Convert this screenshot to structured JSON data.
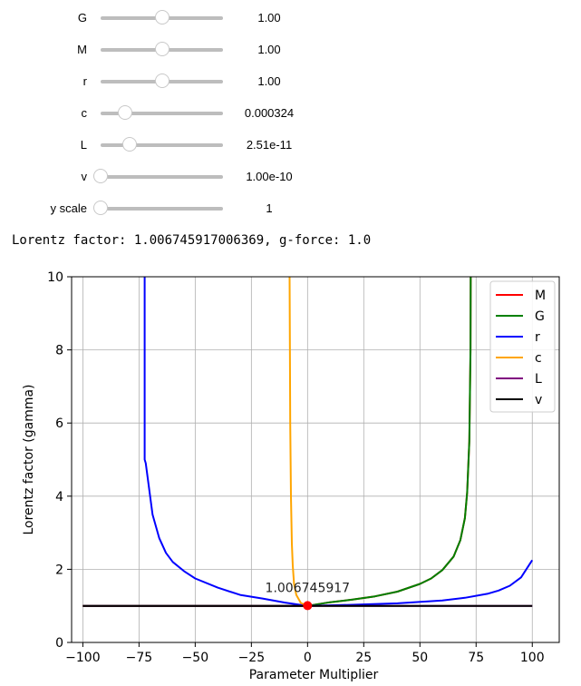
{
  "sliders": [
    {
      "label": "G",
      "readout": "1.00",
      "fraction": 0.5
    },
    {
      "label": "M",
      "readout": "1.00",
      "fraction": 0.5
    },
    {
      "label": "r",
      "readout": "1.00",
      "fraction": 0.5
    },
    {
      "label": "c",
      "readout": "0.000324",
      "fraction": 0.2
    },
    {
      "label": "L",
      "readout": "2.51e-11",
      "fraction": 0.24
    },
    {
      "label": "v",
      "readout": "1.00e-10",
      "fraction": 0.0
    },
    {
      "label": "y scale",
      "readout": "1",
      "fraction": 0.0
    }
  ],
  "status": {
    "text": "Lorentz factor: 1.006745917006369, g-force: 1.0"
  },
  "chart_data": {
    "type": "line",
    "xlabel": "Parameter Multiplier",
    "ylabel": "Lorentz factor (gamma)",
    "xlim": [
      -105,
      112
    ],
    "ylim": [
      0,
      10
    ],
    "xticks": [
      -100,
      -75,
      -50,
      -25,
      0,
      25,
      50,
      75,
      100
    ],
    "yticks": [
      0,
      2,
      4,
      6,
      8,
      10
    ],
    "grid": true,
    "legend_position": "top-right",
    "series": [
      {
        "name": "M",
        "color": "#ff0000",
        "x": [
          -100,
          0,
          10,
          20,
          30,
          40,
          50,
          55,
          60,
          65,
          68,
          70,
          71,
          72,
          72.5,
          72.6
        ],
        "y": [
          1.0,
          1.0,
          1.1,
          1.17,
          1.26,
          1.39,
          1.6,
          1.75,
          1.98,
          2.35,
          2.8,
          3.4,
          4.1,
          5.5,
          8,
          10
        ]
      },
      {
        "name": "G",
        "color": "#008000",
        "x": [
          -100,
          0,
          10,
          20,
          30,
          40,
          50,
          55,
          60,
          65,
          68,
          70,
          71,
          72,
          72.5,
          72.6
        ],
        "y": [
          1.0,
          1.0,
          1.1,
          1.17,
          1.26,
          1.39,
          1.6,
          1.75,
          1.98,
          2.35,
          2.8,
          3.4,
          4.1,
          5.5,
          8,
          10
        ]
      },
      {
        "name": "r",
        "color": "#0000ff",
        "x": [
          -72.5,
          -72.5,
          -72,
          -69,
          -66,
          -63,
          -60,
          -55,
          -50,
          -40,
          -30,
          -20,
          -10,
          0,
          20,
          40,
          60,
          70,
          80,
          85,
          90,
          95,
          100
        ],
        "y": [
          10,
          5.0,
          4.9,
          3.5,
          2.85,
          2.45,
          2.2,
          1.95,
          1.75,
          1.5,
          1.3,
          1.2,
          1.09,
          1.0,
          1.03,
          1.07,
          1.15,
          1.22,
          1.33,
          1.42,
          1.55,
          1.78,
          2.25
        ]
      },
      {
        "name": "c",
        "color": "#ffa500",
        "x": [
          -8,
          -7.7,
          -7.4,
          -7,
          -6.6,
          -6,
          -5,
          -3,
          0
        ],
        "y": [
          10,
          6,
          4,
          2.7,
          2.1,
          1.6,
          1.3,
          1.08,
          1.0
        ]
      },
      {
        "name": "L",
        "color": "#800080",
        "x": [
          -100,
          100
        ],
        "y": [
          1.0,
          1.0
        ]
      },
      {
        "name": "v",
        "color": "#000000",
        "x": [
          -100,
          100
        ],
        "y": [
          1.0,
          1.0
        ]
      }
    ],
    "marker": {
      "x": 0,
      "y": 1.006745917,
      "color": "#ff0000",
      "label": "1.006745917"
    }
  }
}
